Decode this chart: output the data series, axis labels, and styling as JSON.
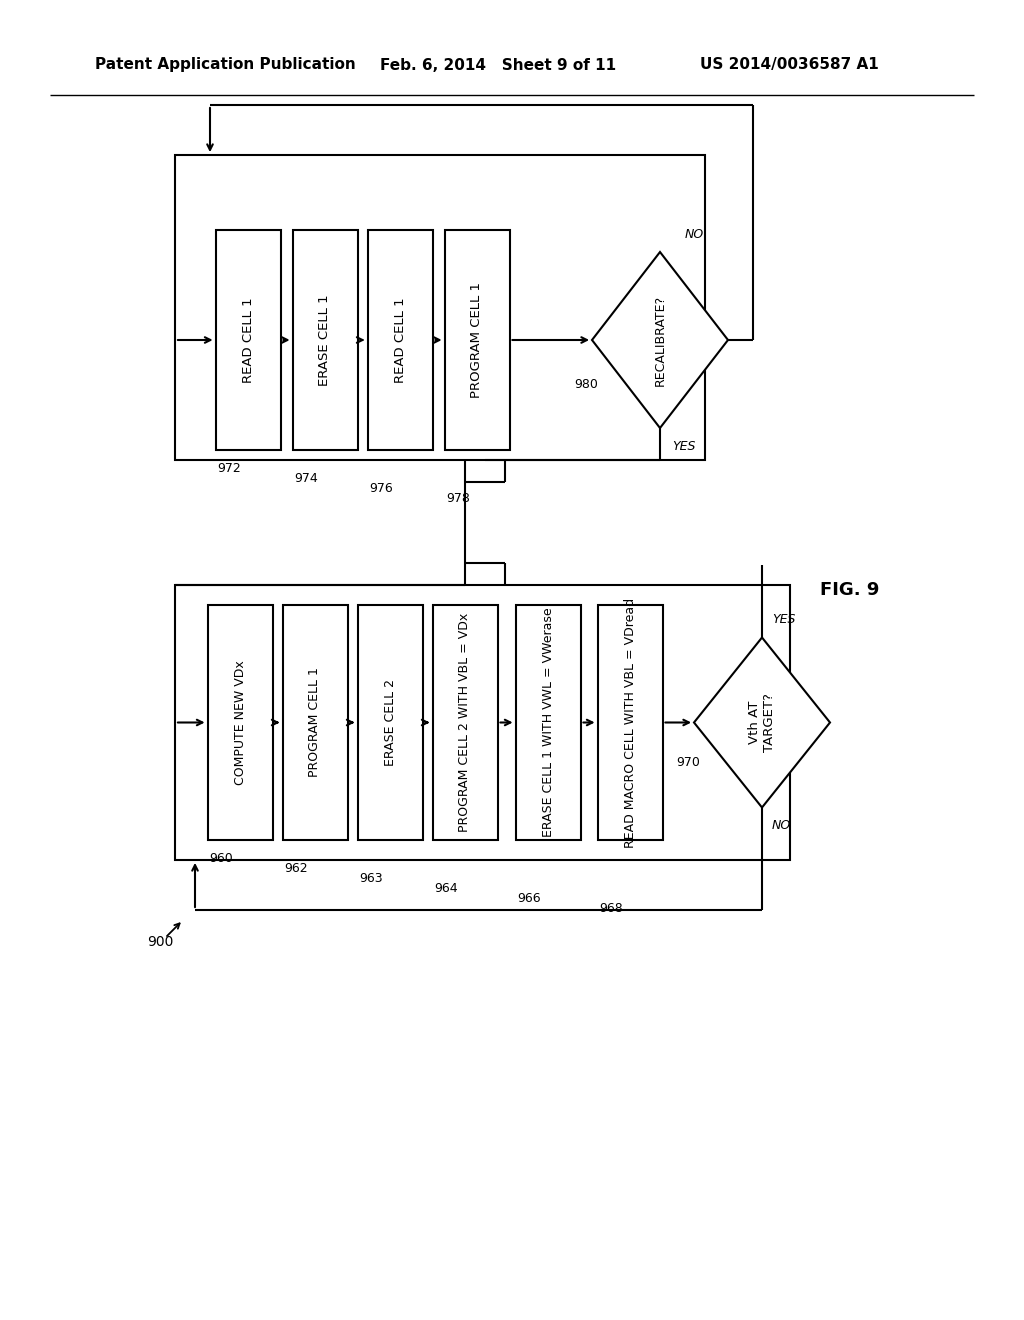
{
  "bg_color": "#ffffff",
  "header_left": "Patent Application Publication",
  "header_mid": "Feb. 6, 2014   Sheet 9 of 11",
  "header_right": "US 2014/0036587 A1",
  "fig_label": "FIG. 9",
  "top_boxes": [
    {
      "label": "READ CELL 1",
      "ref": "972"
    },
    {
      "label": "ERASE CELL 1",
      "ref": "974"
    },
    {
      "label": "READ CELL 1",
      "ref": "976"
    },
    {
      "label": "PROGRAM CELL 1",
      "ref": "978"
    }
  ],
  "top_diamond": {
    "label": "RECALIBRATE?",
    "ref": "980",
    "yes": "YES",
    "no": "NO"
  },
  "bottom_boxes": [
    {
      "label": "COMPUTE NEW VDx",
      "ref": "960"
    },
    {
      "label": "PROGRAM CELL 1",
      "ref": "962"
    },
    {
      "label": "ERASE CELL 2",
      "ref": "963"
    },
    {
      "label": "PROGRAM CELL 2 WITH VBL = VDx",
      "ref": "964"
    },
    {
      "label": "ERASE CELL 1 WITH VWL = VWerase",
      "ref": "966"
    },
    {
      "label": "READ MACRO CELL WITH VBL = VDread",
      "ref": "968"
    }
  ],
  "bottom_diamond": {
    "label": "Vth AT\nTARGET?",
    "ref": "970",
    "yes": "YES",
    "no": "NO"
  },
  "diagram_ref": "900"
}
